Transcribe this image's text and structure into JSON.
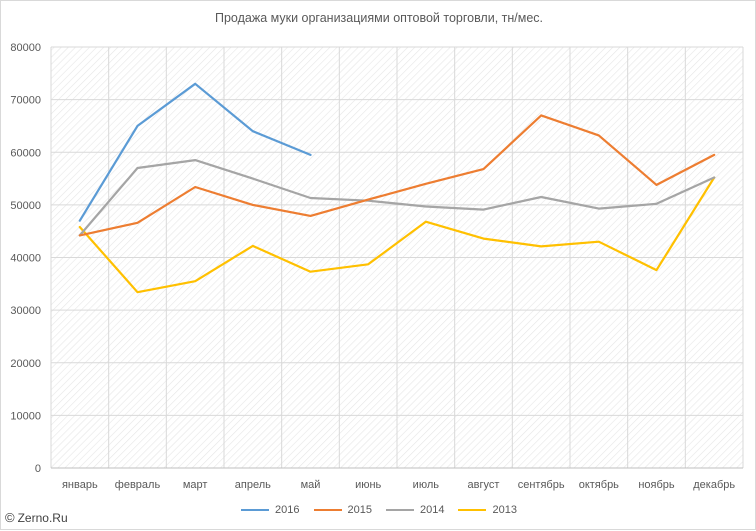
{
  "chart_data": {
    "type": "line",
    "title": "Продажа муки организациями оптовой торговли, тн/мес.",
    "categories": [
      "январь",
      "февраль",
      "март",
      "апрель",
      "май",
      "июнь",
      "июль",
      "август",
      "сентябрь",
      "октябрь",
      "ноябрь",
      "декабрь"
    ],
    "ylim": [
      0,
      80000
    ],
    "yticks": [
      0,
      10000,
      20000,
      30000,
      40000,
      50000,
      60000,
      70000,
      80000
    ],
    "grid": true,
    "legend_position": "bottom",
    "series": [
      {
        "name": "2016",
        "color": "#5b9bd5",
        "values": [
          47000,
          65000,
          73000,
          64000,
          59500,
          null,
          null,
          null,
          null,
          null,
          null,
          null
        ]
      },
      {
        "name": "2015",
        "color": "#ed7d31",
        "values": [
          44200,
          46600,
          53400,
          50000,
          47900,
          51000,
          54000,
          56800,
          67000,
          63200,
          53800,
          59500
        ]
      },
      {
        "name": "2014",
        "color": "#a5a5a5",
        "values": [
          44200,
          57000,
          58500,
          55000,
          51300,
          50800,
          49700,
          49100,
          51500,
          49300,
          50200,
          55200
        ]
      },
      {
        "name": "2013",
        "color": "#ffc000",
        "values": [
          45800,
          33400,
          35500,
          42200,
          37300,
          38700,
          46800,
          43600,
          42100,
          43000,
          37600,
          55200
        ]
      }
    ]
  },
  "watermark": {
    "symbol": "©",
    "text": "Zerno.Ru"
  }
}
